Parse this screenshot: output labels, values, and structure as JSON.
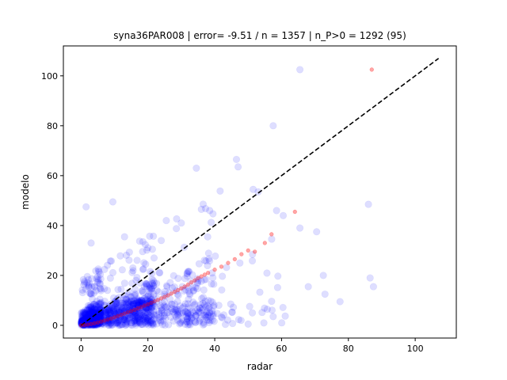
{
  "chart_data": {
    "type": "scatter",
    "title": "syna36PAR008 | error= -9.51 / n = 1357 | n_P>0 = 1292 (95)",
    "xlabel": "radar",
    "ylabel": "modelo",
    "xlim": [
      -5.3,
      112.3
    ],
    "ylim": [
      -5.1,
      112.0
    ],
    "xticks": [
      0,
      20,
      40,
      60,
      80,
      100
    ],
    "yticks": [
      0,
      20,
      40,
      60,
      80,
      100
    ],
    "grid": false,
    "legend": "none",
    "reference_line": {
      "x": [
        0,
        107
      ],
      "y": [
        0,
        107
      ],
      "style": "dashed",
      "color": "#000000"
    },
    "series": [
      {
        "role": "observations",
        "color": "#0000ff",
        "alpha": 0.13,
        "count": 1357,
        "notable_points": [
          {
            "x": 65.5,
            "y": 102.5
          },
          {
            "x": 57.5,
            "y": 80.0
          },
          {
            "x": 46.5,
            "y": 66.5
          },
          {
            "x": 47.0,
            "y": 63.5
          },
          {
            "x": 34.5,
            "y": 63.0
          },
          {
            "x": 51.5,
            "y": 54.5
          },
          {
            "x": 53.0,
            "y": 53.5
          },
          {
            "x": 9.5,
            "y": 49.5
          },
          {
            "x": 1.5,
            "y": 47.5
          },
          {
            "x": 86.0,
            "y": 48.5
          },
          {
            "x": 58.5,
            "y": 46.0
          },
          {
            "x": 36.0,
            "y": 46.5
          },
          {
            "x": 38.5,
            "y": 46.0
          },
          {
            "x": 60.5,
            "y": 44.0
          },
          {
            "x": 65.5,
            "y": 39.0
          },
          {
            "x": 70.5,
            "y": 37.5
          },
          {
            "x": 86.5,
            "y": 19.0
          },
          {
            "x": 87.5,
            "y": 15.5
          },
          {
            "x": 77.5,
            "y": 9.5
          },
          {
            "x": 72.5,
            "y": 20.0
          },
          {
            "x": 68.0,
            "y": 15.5
          },
          {
            "x": 73.0,
            "y": 12.5
          },
          {
            "x": 57.5,
            "y": 3.5
          },
          {
            "x": 50.0,
            "y": 0.5
          },
          {
            "x": 3.0,
            "y": 33.0
          },
          {
            "x": 13.0,
            "y": 35.5
          },
          {
            "x": 25.5,
            "y": 42.0
          },
          {
            "x": 30.0,
            "y": 41.0
          },
          {
            "x": 18.5,
            "y": 33.5
          },
          {
            "x": 24.0,
            "y": 34.0
          }
        ]
      },
      {
        "role": "quantile-quantile",
        "color": "#ff0000",
        "alpha": 0.35,
        "points": [
          {
            "x": 0,
            "y": 0
          },
          {
            "x": 1,
            "y": 0.1
          },
          {
            "x": 2,
            "y": 0.3
          },
          {
            "x": 3,
            "y": 0.5
          },
          {
            "x": 4,
            "y": 0.8
          },
          {
            "x": 5,
            "y": 1.1
          },
          {
            "x": 6,
            "y": 1.5
          },
          {
            "x": 7,
            "y": 1.9
          },
          {
            "x": 8,
            "y": 2.3
          },
          {
            "x": 9,
            "y": 2.7
          },
          {
            "x": 10,
            "y": 3.2
          },
          {
            "x": 11,
            "y": 3.7
          },
          {
            "x": 12,
            "y": 4.2
          },
          {
            "x": 13,
            "y": 4.7
          },
          {
            "x": 14,
            "y": 5.2
          },
          {
            "x": 15,
            "y": 5.7
          },
          {
            "x": 16,
            "y": 6.2
          },
          {
            "x": 17,
            "y": 6.8
          },
          {
            "x": 18,
            "y": 7.3
          },
          {
            "x": 19,
            "y": 7.9
          },
          {
            "x": 20,
            "y": 8.4
          },
          {
            "x": 21,
            "y": 9.0
          },
          {
            "x": 22,
            "y": 9.6
          },
          {
            "x": 23,
            "y": 10.2
          },
          {
            "x": 24,
            "y": 10.8
          },
          {
            "x": 25,
            "y": 11.4
          },
          {
            "x": 26,
            "y": 12.0
          },
          {
            "x": 27,
            "y": 12.7
          },
          {
            "x": 28,
            "y": 13.4
          },
          {
            "x": 29,
            "y": 14.1
          },
          {
            "x": 30,
            "y": 14.8
          },
          {
            "x": 31,
            "y": 15.5
          },
          {
            "x": 32,
            "y": 16.3
          },
          {
            "x": 33,
            "y": 17.2
          },
          {
            "x": 34,
            "y": 18.0
          },
          {
            "x": 35,
            "y": 18.9
          },
          {
            "x": 36,
            "y": 19.6
          },
          {
            "x": 37,
            "y": 20.3
          },
          {
            "x": 38,
            "y": 21.0
          },
          {
            "x": 40,
            "y": 22.3
          },
          {
            "x": 42,
            "y": 23.5
          },
          {
            "x": 44,
            "y": 25.0
          },
          {
            "x": 46,
            "y": 26.5
          },
          {
            "x": 48,
            "y": 28.5
          },
          {
            "x": 50,
            "y": 30.0
          },
          {
            "x": 52,
            "y": 29.5
          },
          {
            "x": 55,
            "y": 33.0
          },
          {
            "x": 57,
            "y": 36.5
          },
          {
            "x": 64,
            "y": 45.5
          },
          {
            "x": 87,
            "y": 102.5
          }
        ]
      }
    ]
  }
}
